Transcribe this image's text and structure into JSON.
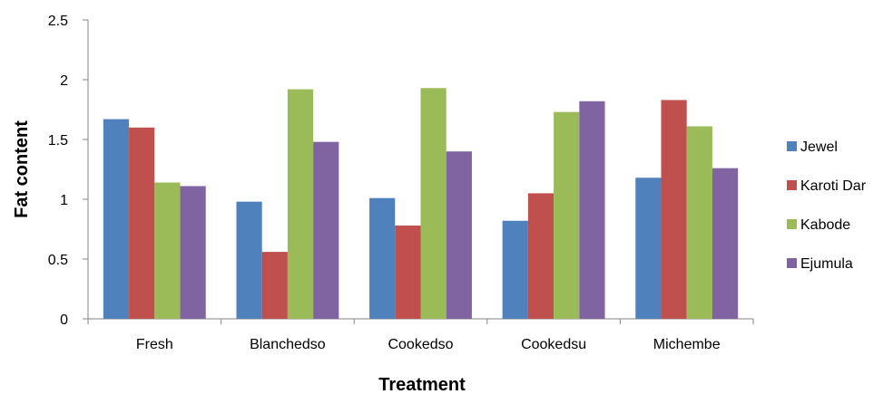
{
  "chart_data": {
    "type": "bar",
    "title": "",
    "xlabel": "Treatment",
    "ylabel": "Fat content",
    "categories": [
      "Fresh",
      "Blanchedso",
      "Cookedso",
      "Cookedsu",
      "Michembe"
    ],
    "series": [
      {
        "name": "Jewel",
        "color": "#4F81BD",
        "values": [
          1.67,
          0.98,
          1.01,
          0.82,
          1.18
        ]
      },
      {
        "name": "Karoti Dar",
        "color": "#C0504D",
        "values": [
          1.6,
          0.56,
          0.78,
          1.05,
          1.83
        ]
      },
      {
        "name": "Kabode",
        "color": "#9BBB59",
        "values": [
          1.14,
          1.92,
          1.93,
          1.73,
          1.61
        ]
      },
      {
        "name": "Ejumula",
        "color": "#8064A2",
        "values": [
          1.11,
          1.48,
          1.4,
          1.82,
          1.26
        ]
      }
    ],
    "ylim": [
      0,
      2.5
    ],
    "yticks": [
      "0",
      "0.5",
      "1",
      "1.5",
      "2",
      "2.5"
    ],
    "grid": false,
    "legend_position": "right"
  }
}
